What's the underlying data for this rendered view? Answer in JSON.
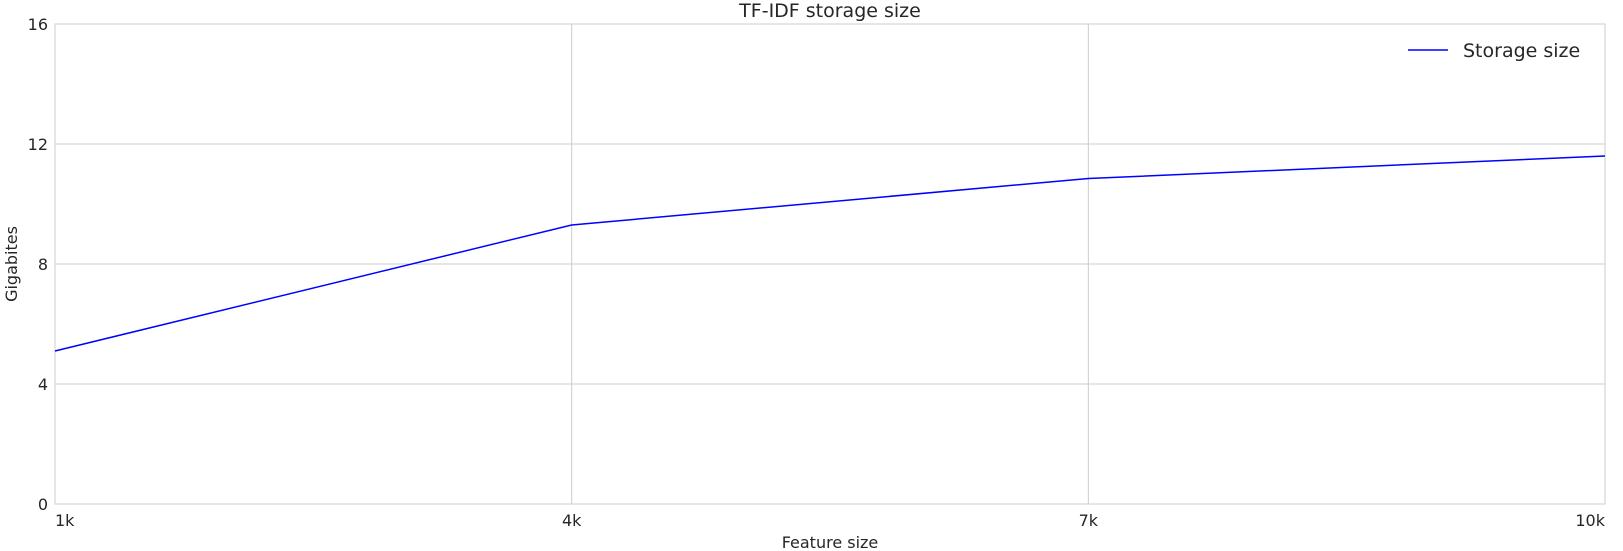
{
  "chart_data": {
    "type": "line",
    "title": "TF-IDF storage size",
    "xlabel": "Feature size",
    "ylabel": "Gigabites",
    "categories": [
      "1k",
      "4k",
      "7k",
      "10k"
    ],
    "series": [
      {
        "name": "Storage size",
        "values": [
          5.1,
          9.3,
          10.85,
          11.6
        ],
        "color": "#0000ff"
      }
    ],
    "ylim": [
      0,
      16
    ],
    "yticks": [
      "0",
      "4",
      "8",
      "12",
      "16"
    ],
    "grid": true,
    "legend_position": "top-right"
  }
}
